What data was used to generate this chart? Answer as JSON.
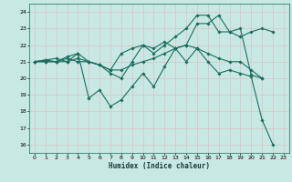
{
  "xlabel": "Humidex (Indice chaleur)",
  "ylabel": "",
  "bg_color": "#c8e8e4",
  "grid_color": "#d8c8c8",
  "line_color": "#1a6e60",
  "xlim": [
    -0.5,
    23.5
  ],
  "ylim": [
    15.5,
    24.5
  ],
  "yticks": [
    16,
    17,
    18,
    19,
    20,
    21,
    22,
    23,
    24
  ],
  "xticks": [
    0,
    1,
    2,
    3,
    4,
    5,
    6,
    7,
    8,
    9,
    10,
    11,
    12,
    13,
    14,
    15,
    16,
    17,
    18,
    19,
    20,
    21,
    22,
    23
  ],
  "series": [
    [
      21.0,
      21.0,
      21.0,
      21.0,
      21.5,
      18.8,
      19.3,
      18.3,
      18.7,
      19.5,
      20.3,
      19.5,
      20.7,
      21.8,
      21.0,
      21.8,
      21.0,
      20.3,
      20.5,
      20.3,
      20.1,
      17.5,
      16.0,
      null
    ],
    [
      21.0,
      21.0,
      21.0,
      21.2,
      21.0,
      21.0,
      20.8,
      20.5,
      20.5,
      20.8,
      21.0,
      21.2,
      21.5,
      21.8,
      22.0,
      21.8,
      21.5,
      21.2,
      21.0,
      21.0,
      20.5,
      20.0,
      null,
      null
    ],
    [
      21.0,
      21.1,
      21.0,
      21.3,
      21.5,
      21.0,
      20.8,
      20.3,
      20.0,
      21.0,
      22.0,
      21.8,
      22.2,
      21.8,
      22.0,
      23.3,
      23.3,
      23.8,
      22.8,
      22.5,
      22.8,
      23.0,
      22.8,
      null
    ],
    [
      21.0,
      21.1,
      21.2,
      21.0,
      21.2,
      21.0,
      20.8,
      20.5,
      21.5,
      21.8,
      22.0,
      21.5,
      22.0,
      22.5,
      23.0,
      23.8,
      23.8,
      22.8,
      22.8,
      23.0,
      20.2,
      20.0,
      null,
      null
    ]
  ]
}
